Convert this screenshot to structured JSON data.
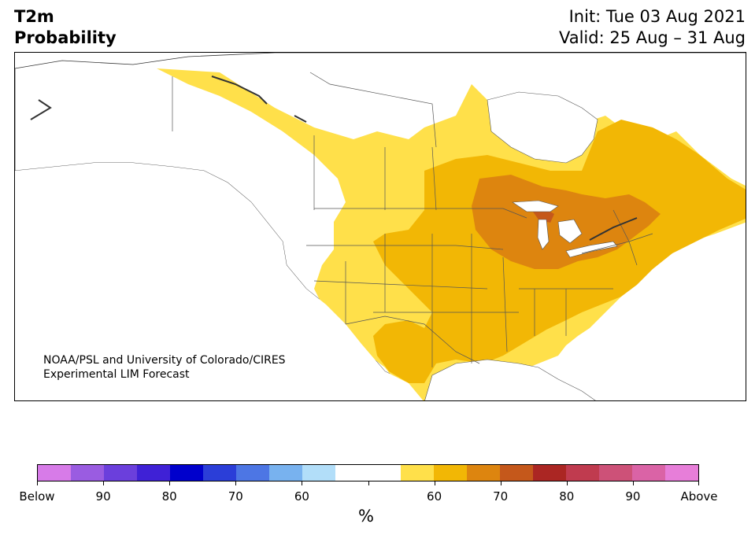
{
  "title": {
    "variable": "T2m",
    "subtitle": "Probability",
    "init": "Init: Tue 03 Aug 2021",
    "valid": "Valid: 25 Aug – 31 Aug"
  },
  "credit": {
    "line1": "NOAA/PSL and University of Colorado/CIRES",
    "line2": "Experimental LIM Forecast"
  },
  "colorbar": {
    "unit": "%",
    "colors": [
      "#d77be8",
      "#9a5ce1",
      "#6b3fdc",
      "#3f21d6",
      "#0000cc",
      "#2b3ed8",
      "#4d76e4",
      "#78b2ef",
      "#b2def9",
      "#ffffff",
      "#ffffff",
      "#ffe04a",
      "#f2b705",
      "#dd850f",
      "#c5581b",
      "#ab2623",
      "#c03b4f",
      "#cd5178",
      "#da63a6",
      "#e77ed9"
    ],
    "tick_labels": [
      "Below",
      "90",
      "80",
      "70",
      "60",
      "",
      "60",
      "70",
      "80",
      "90",
      "Above"
    ]
  },
  "map": {
    "legend_colors": {
      "land": "#ffffff",
      "above_50_60": "#ffe04a",
      "above_60_70": "#f2b705",
      "above_70_80": "#dd850f",
      "above_80_90": "#c5581b"
    }
  }
}
